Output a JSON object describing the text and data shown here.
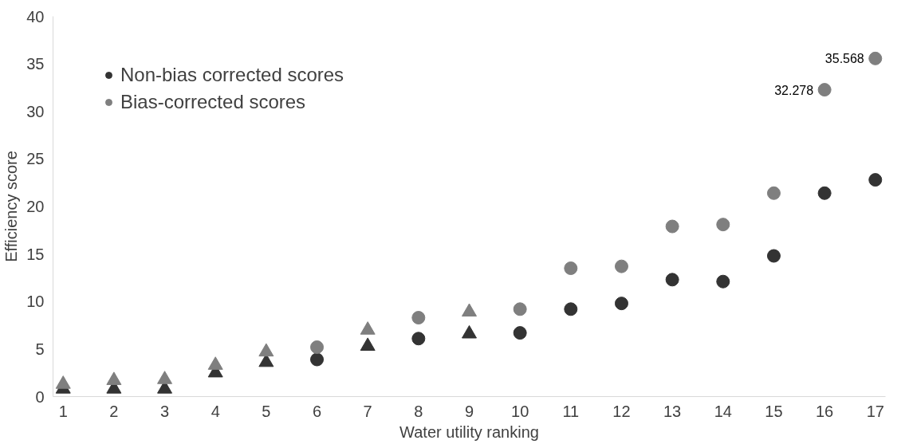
{
  "chart_data": {
    "type": "scatter",
    "xlabel": "Water utility ranking",
    "ylabel": "Efficiency score",
    "xlim": [
      0.8,
      17.2
    ],
    "xticks": [
      1,
      2,
      3,
      4,
      5,
      6,
      7,
      8,
      9,
      10,
      11,
      12,
      13,
      14,
      15,
      16,
      17
    ],
    "ylim": [
      0,
      40
    ],
    "yticks": [
      0,
      5,
      10,
      15,
      20,
      25,
      30,
      35,
      40
    ],
    "grid": false,
    "legend": "top left",
    "series": [
      {
        "name": "Non-bias corrected scores",
        "color": "#333333",
        "marker": "circle",
        "x": [
          6,
          8,
          10,
          11,
          12,
          13,
          14,
          15,
          16,
          17
        ],
        "values": [
          3.9,
          6.1,
          6.7,
          9.2,
          9.8,
          12.3,
          12.1,
          14.8,
          21.4,
          22.8
        ]
      },
      {
        "color": "#333333",
        "marker": "triangle",
        "x": [
          1,
          2,
          3,
          4,
          5,
          7,
          9
        ],
        "values": [
          0.8,
          0.8,
          0.8,
          2.5,
          3.6,
          5.3,
          6.6
        ]
      },
      {
        "name": "Bias-corrected scores",
        "color": "#7f7f7f",
        "marker": "circle",
        "x": [
          6,
          8,
          10,
          11,
          12,
          13,
          14,
          15,
          16,
          17
        ],
        "values": [
          5.2,
          8.3,
          9.2,
          13.5,
          13.7,
          17.9,
          18.1,
          21.4,
          32.278,
          35.568
        ],
        "value_labels": [
          null,
          null,
          null,
          null,
          null,
          null,
          null,
          null,
          "32.278",
          "35.568"
        ]
      },
      {
        "color": "#7f7f7f",
        "marker": "triangle",
        "x": [
          1,
          2,
          3,
          4,
          5,
          7,
          9
        ],
        "values": [
          1.3,
          1.7,
          1.8,
          3.3,
          4.7,
          7.0,
          8.9
        ]
      }
    ]
  }
}
